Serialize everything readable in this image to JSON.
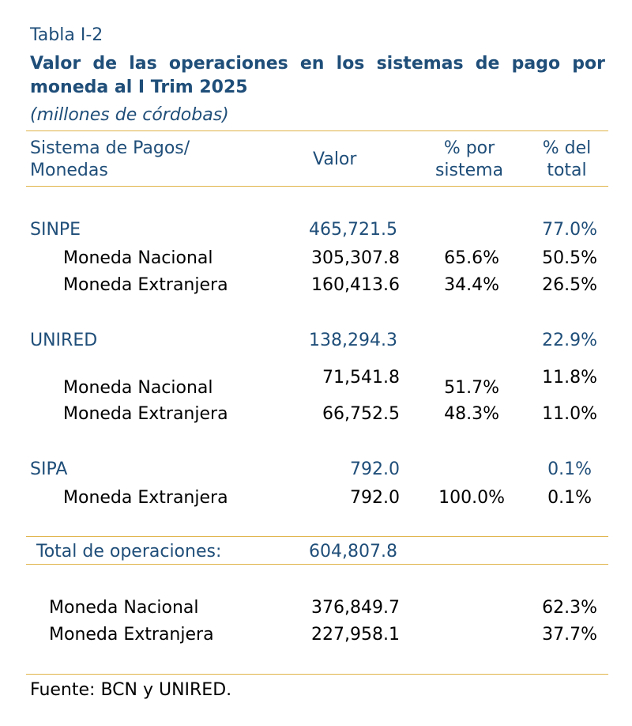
{
  "table_label": "Tabla I-2",
  "title": {
    "line1_words": [
      "Valor",
      "de",
      "las",
      "operaciones",
      "en",
      "los",
      "sistemas",
      "de",
      "pago",
      "por"
    ],
    "line2": "moneda al I Trim 2025"
  },
  "subtitle": "(millones de córdobas)",
  "headers": {
    "system_line1": "Sistema de Pagos/",
    "system_line2": "Monedas",
    "valor": "Valor",
    "pct_sistema_line1": "% por",
    "pct_sistema_line2": "sistema",
    "pct_total_line1": "% del",
    "pct_total_line2": "total"
  },
  "groups": [
    {
      "name": "SINPE",
      "valor": "465,721.5",
      "pct_total": "77.0%",
      "rows": [
        {
          "label": "Moneda Nacional",
          "valor": "305,307.8",
          "pct_sistema": "65.6%",
          "pct_total": "50.5%"
        },
        {
          "label": "Moneda Extranjera",
          "valor": "160,413.6",
          "pct_sistema": "34.4%",
          "pct_total": "26.5%"
        }
      ]
    },
    {
      "name": "UNIRED",
      "valor": "138,294.3",
      "pct_total": "22.9%",
      "rows": [
        {
          "label": "Moneda Nacional",
          "valor": "71,541.8",
          "pct_sistema": "51.7%",
          "pct_total": "11.8%"
        },
        {
          "label": "Moneda Extranjera",
          "valor": "66,752.5",
          "pct_sistema": "48.3%",
          "pct_total": "11.0%"
        }
      ]
    },
    {
      "name": "SIPA",
      "valor": "792.0",
      "pct_total": "0.1%",
      "rows": [
        {
          "label": "Moneda Extranjera",
          "valor": "792.0",
          "pct_sistema": "100.0%",
          "pct_total": "0.1%"
        }
      ]
    }
  ],
  "total": {
    "label": "Total de operaciones:",
    "valor": "604,807.8"
  },
  "summary": [
    {
      "label": "Moneda Nacional",
      "valor": "376,849.7",
      "pct_total": "62.3%"
    },
    {
      "label": "Moneda Extranjera",
      "valor": "227,958.1",
      "pct_total": "37.7%"
    }
  ],
  "source": "Fuente: BCN y UNIRED.",
  "colors": {
    "heading_blue": "#1f4e79",
    "rule_gold": "#e0b44a",
    "text": "#000000"
  }
}
